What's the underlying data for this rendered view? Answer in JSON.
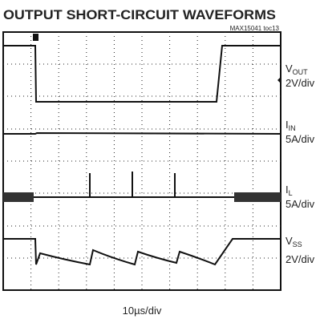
{
  "title": "OUTPUT SHORT-CIRCUIT WAVEFORMS",
  "figure_id": "MAX15041 toc13",
  "channels": [
    {
      "symbol": "V",
      "subscript": "OUT",
      "scale": "2V/div"
    },
    {
      "symbol": "I",
      "subscript": "IN",
      "scale": "5A/div"
    },
    {
      "symbol": "I",
      "subscript": "L",
      "scale": "5A/div"
    },
    {
      "symbol": "V",
      "subscript": "SS",
      "scale": "2V/div"
    }
  ],
  "timebase": "10µs/div"
}
